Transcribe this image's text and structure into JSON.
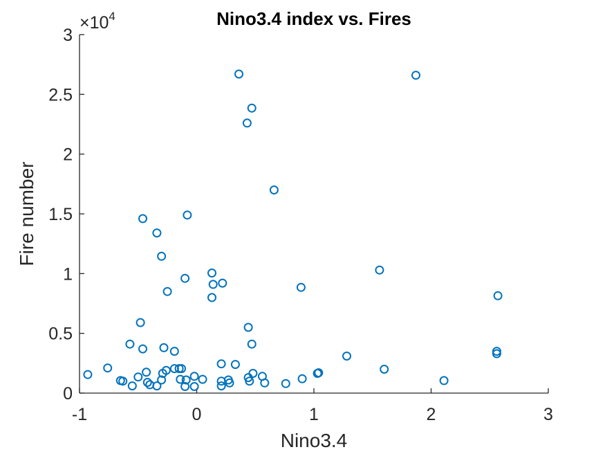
{
  "chart_data": {
    "type": "scatter",
    "title": "Nino3.4 index vs. Fires",
    "xlabel": "Nino3.4",
    "ylabel": "Fire number",
    "xlim": [
      -1,
      3
    ],
    "ylim": [
      0,
      3
    ],
    "x_ticks": [
      -1,
      0,
      1,
      2,
      3
    ],
    "x_tick_labels": [
      "-1",
      "0",
      "1",
      "2",
      "3"
    ],
    "y_ticks": [
      0,
      0.5,
      1,
      1.5,
      2,
      2.5,
      3
    ],
    "y_tick_labels": [
      "0",
      "0.5",
      "1",
      "1.5",
      "2",
      "2.5",
      "3"
    ],
    "y_exponent_prefix": "×10",
    "y_exponent": "4",
    "grid": false,
    "marker": "open-circle",
    "marker_color": "#0072BD",
    "axis_color": "#262626",
    "x": [
      -0.93,
      -0.76,
      -0.65,
      -0.63,
      -0.57,
      -0.55,
      -0.5,
      -0.48,
      -0.46,
      -0.46,
      -0.43,
      -0.42,
      -0.4,
      -0.34,
      -0.34,
      -0.3,
      -0.3,
      -0.29,
      -0.28,
      -0.26,
      -0.25,
      -0.19,
      -0.19,
      -0.15,
      -0.14,
      -0.13,
      -0.1,
      -0.1,
      -0.09,
      -0.08,
      -0.02,
      -0.02,
      0.05,
      0.13,
      0.13,
      0.14,
      0.21,
      0.21,
      0.21,
      0.22,
      0.27,
      0.28,
      0.33,
      0.36,
      0.43,
      0.44,
      0.44,
      0.45,
      0.47,
      0.47,
      0.48,
      0.56,
      0.58,
      0.66,
      0.76,
      0.89,
      0.9,
      1.03,
      1.04,
      1.28,
      1.56,
      1.6,
      1.87,
      2.11,
      2.56,
      2.56,
      2.57
    ],
    "y": [
      0.155,
      0.21,
      0.105,
      0.1,
      0.41,
      0.06,
      0.135,
      0.59,
      1.46,
      0.37,
      0.175,
      0.09,
      0.07,
      1.34,
      0.06,
      1.145,
      0.11,
      0.165,
      0.38,
      0.19,
      0.85,
      0.35,
      0.205,
      0.205,
      0.115,
      0.205,
      0.96,
      0.055,
      0.11,
      1.49,
      0.14,
      0.055,
      0.115,
      1.005,
      0.8,
      0.91,
      0.245,
      0.1,
      0.06,
      0.92,
      0.11,
      0.085,
      0.24,
      2.67,
      2.26,
      0.55,
      0.13,
      0.1,
      0.41,
      2.385,
      0.165,
      0.14,
      0.085,
      1.7,
      0.08,
      0.885,
      0.12,
      0.165,
      0.17,
      0.31,
      1.03,
      0.2,
      2.66,
      0.105,
      0.35,
      0.33,
      0.815
    ]
  }
}
